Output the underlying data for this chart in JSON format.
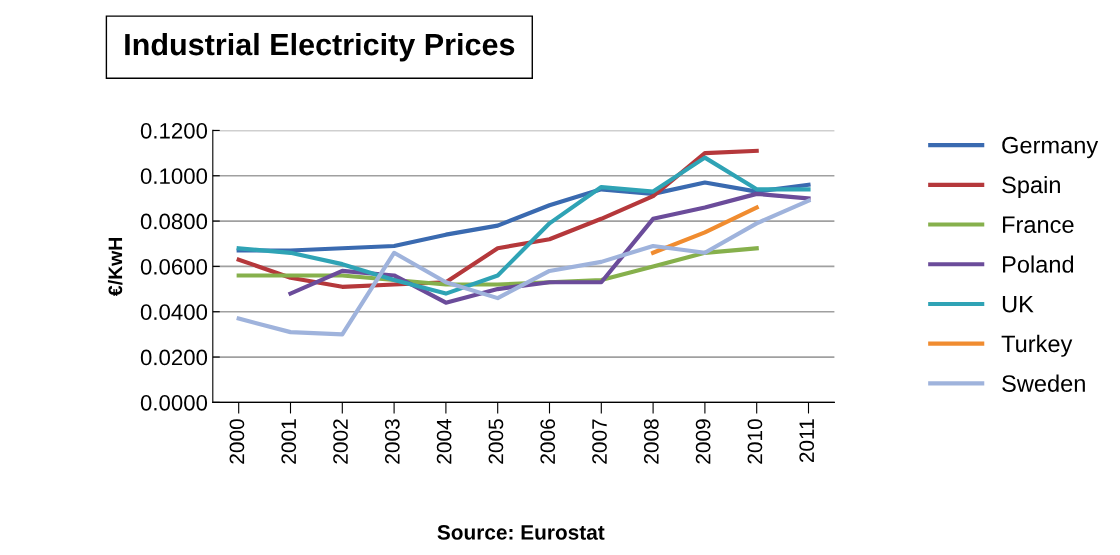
{
  "chart_data": {
    "type": "line",
    "title": "Industrial Electricity Prices",
    "ylabel": "€/KwH",
    "annotations": [
      "Source: Eurostat"
    ],
    "categories": [
      "2000",
      "2001",
      "2002",
      "2003",
      "2004",
      "2005",
      "2006",
      "2007",
      "2008",
      "2009",
      "2010",
      "2011"
    ],
    "series": [
      {
        "name": "Germany",
        "color": "#3a6ab0",
        "values": [
          0.067,
          0.067,
          0.068,
          0.069,
          0.074,
          0.078,
          0.087,
          0.094,
          0.092,
          0.097,
          0.093,
          0.096
        ]
      },
      {
        "name": "Spain",
        "color": "#b5383b",
        "values": [
          0.063,
          0.055,
          0.051,
          0.052,
          0.053,
          0.068,
          0.072,
          0.081,
          0.091,
          0.11,
          0.111,
          null
        ]
      },
      {
        "name": "France",
        "color": "#86b04c",
        "values": [
          0.056,
          0.056,
          0.056,
          0.054,
          0.052,
          0.052,
          0.053,
          0.054,
          0.06,
          0.066,
          0.068,
          null
        ]
      },
      {
        "name": "Poland",
        "color": "#6b4c9a",
        "values": [
          null,
          0.048,
          0.058,
          0.056,
          0.044,
          0.05,
          0.053,
          0.053,
          0.081,
          0.086,
          0.092,
          0.09
        ]
      },
      {
        "name": "UK",
        "color": "#2fa3b5",
        "values": [
          0.068,
          0.066,
          0.061,
          0.054,
          0.048,
          0.056,
          0.079,
          0.095,
          0.093,
          0.108,
          0.094,
          0.094
        ]
      },
      {
        "name": "Turkey",
        "color": "#f08c30",
        "values": [
          null,
          null,
          null,
          null,
          null,
          null,
          null,
          null,
          0.066,
          0.075,
          0.086,
          null
        ]
      },
      {
        "name": "Sweden",
        "color": "#9fb3dc",
        "values": [
          0.037,
          0.031,
          0.03,
          0.066,
          0.053,
          0.046,
          0.058,
          0.062,
          0.069,
          0.066,
          0.079,
          0.089
        ]
      }
    ],
    "ylim": [
      0,
      0.12
    ],
    "yticks": [
      {
        "value": 0,
        "label": "0.0000"
      },
      {
        "value": 0.02,
        "label": "0.0200"
      },
      {
        "value": 0.04,
        "label": "0.0400"
      },
      {
        "value": 0.06,
        "label": "0.0600"
      },
      {
        "value": 0.08,
        "label": "0.0800"
      },
      {
        "value": 0.1,
        "label": "0.1000"
      },
      {
        "value": 0.12,
        "label": "0.1200"
      }
    ],
    "grid": "y",
    "legend": "right",
    "marker": "none",
    "line_style": "solid"
  }
}
